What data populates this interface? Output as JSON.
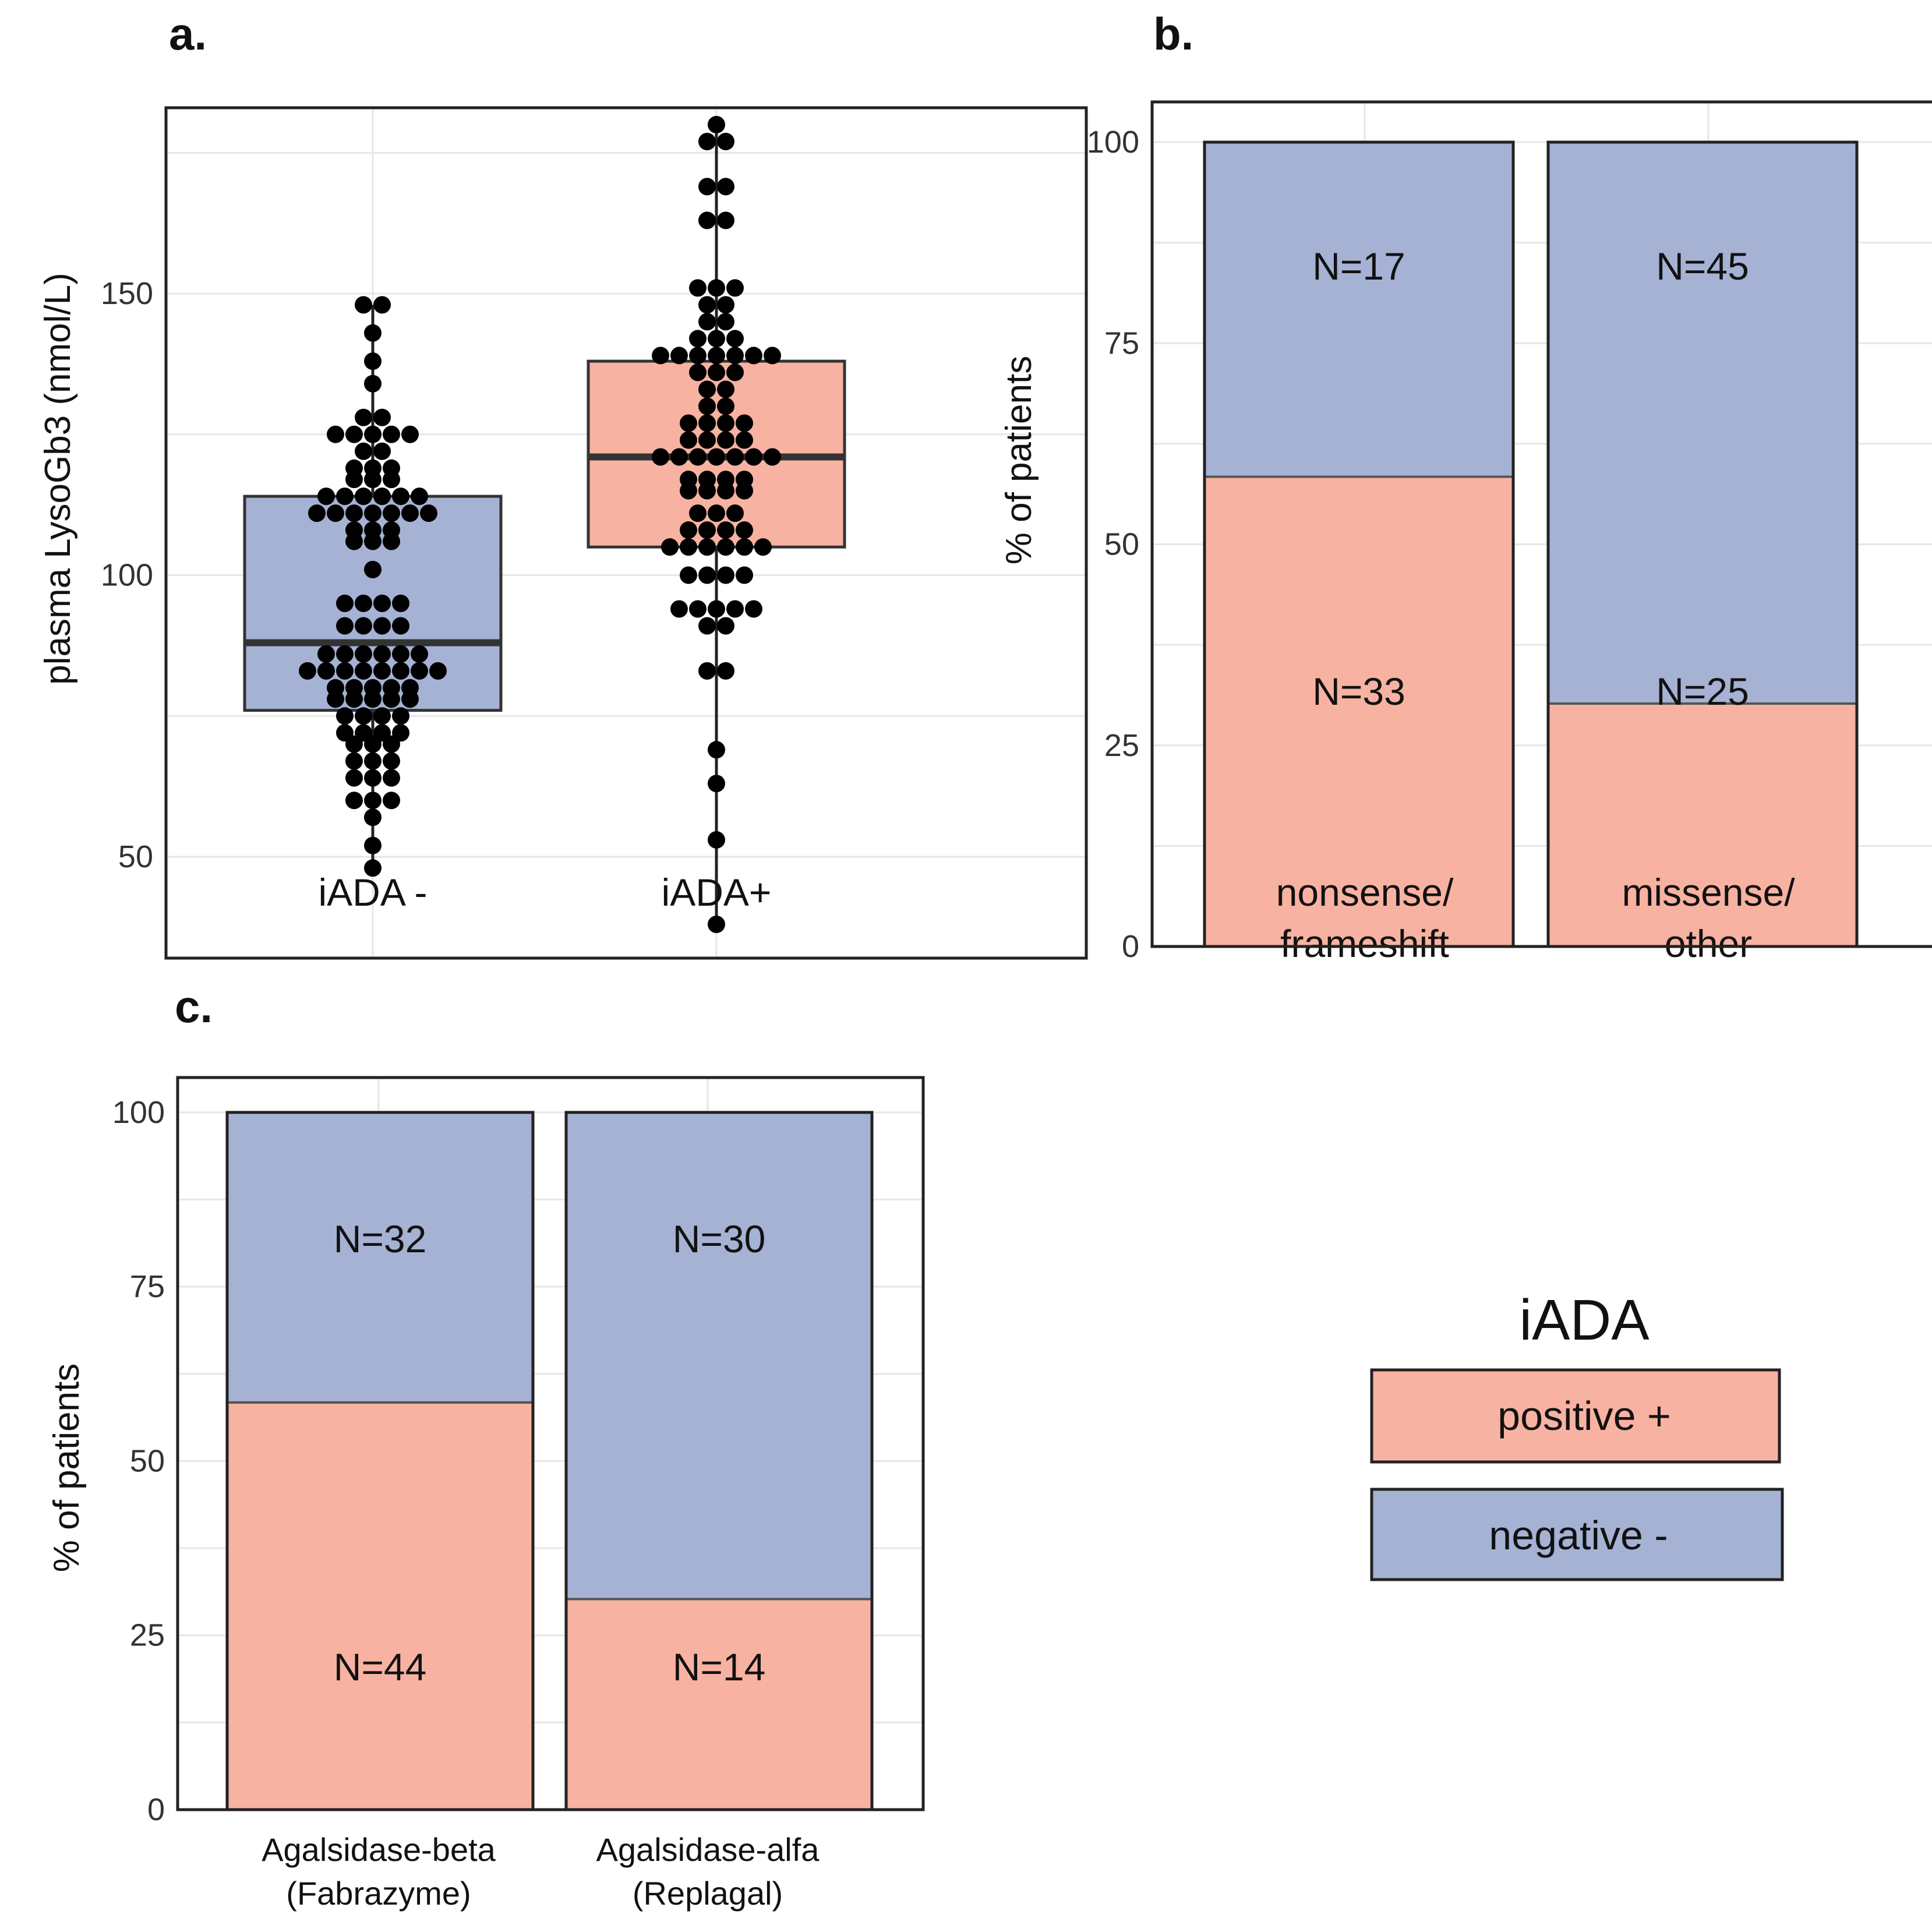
{
  "colors": {
    "positive": "#f8b2a1",
    "negative": "#a5b2d4",
    "frame": "#222222",
    "point": "#000000"
  },
  "legend": {
    "title": "iADA",
    "positive_label": "positive +",
    "negative_label": "negative -"
  },
  "chart_data": [
    {
      "panel": "a.",
      "type": "box",
      "ylabel": "plasma LysoGb3 (nmol/L)",
      "xlabel": "",
      "ylim": [
        32,
        183
      ],
      "yticks": [
        50,
        100,
        150
      ],
      "categories": [
        "iADA -",
        "iADA+"
      ],
      "boxes": [
        {
          "category": "iADA -",
          "q1": 76,
          "median": 88,
          "q3": 114,
          "whisker_low": 48,
          "whisker_high": 148,
          "fill": "negative",
          "points": [
            48,
            52,
            57,
            60,
            60,
            60,
            64,
            64,
            64,
            67,
            67,
            67,
            70,
            70,
            70,
            72,
            72,
            72,
            72,
            75,
            75,
            75,
            75,
            78,
            78,
            78,
            78,
            78,
            80,
            80,
            80,
            80,
            80,
            83,
            83,
            83,
            83,
            83,
            83,
            83,
            83,
            86,
            86,
            86,
            86,
            86,
            86,
            91,
            91,
            91,
            91,
            95,
            95,
            95,
            95,
            101,
            106,
            106,
            106,
            108,
            108,
            108,
            111,
            111,
            111,
            111,
            111,
            111,
            111,
            114,
            114,
            114,
            114,
            114,
            114,
            117,
            117,
            117,
            119,
            119,
            119,
            122,
            122,
            125,
            125,
            125,
            125,
            125,
            128,
            128,
            134,
            138,
            143,
            148,
            148
          ]
        },
        {
          "category": "iADA+",
          "q1": 105,
          "median": 121,
          "q3": 138,
          "whisker_low": 38,
          "whisker_high": 180,
          "fill": "positive",
          "points": [
            38,
            53,
            63,
            69,
            83,
            83,
            91,
            91,
            94,
            94,
            94,
            94,
            94,
            100,
            100,
            100,
            100,
            105,
            105,
            105,
            105,
            105,
            105,
            108,
            108,
            108,
            108,
            111,
            111,
            111,
            115,
            115,
            115,
            115,
            117,
            117,
            117,
            117,
            121,
            121,
            121,
            121,
            121,
            121,
            121,
            124,
            124,
            124,
            124,
            127,
            127,
            127,
            127,
            130,
            130,
            133,
            133,
            136,
            136,
            136,
            139,
            139,
            139,
            139,
            139,
            139,
            139,
            142,
            142,
            142,
            145,
            145,
            148,
            148,
            151,
            151,
            151,
            163,
            163,
            169,
            169,
            177,
            177,
            180
          ]
        }
      ]
    },
    {
      "panel": "b.",
      "type": "bar",
      "stacked": true,
      "ylabel": "% of patients",
      "ylim": [
        0,
        105
      ],
      "yticks": [
        0,
        25,
        50,
        75,
        100
      ],
      "categories": [
        "nonsense/\nframeshift",
        "missense/\nother"
      ],
      "series": [
        {
          "name": "positive +",
          "fill": "positive",
          "values": [
            58.4,
            30.2
          ],
          "labels": [
            "N=33",
            "N=25"
          ]
        },
        {
          "name": "negative -",
          "fill": "negative",
          "values": [
            41.6,
            69.8
          ],
          "labels": [
            "N=17",
            "N=45"
          ]
        }
      ]
    },
    {
      "panel": "c.",
      "type": "bar",
      "stacked": true,
      "ylabel": "% of patients",
      "ylim": [
        0,
        105
      ],
      "yticks": [
        0,
        25,
        50,
        75,
        100
      ],
      "categories": [
        "Agalsidase-beta\n(Fabrazyme)",
        "Agalsidase-alfa\n(Replagal)"
      ],
      "series": [
        {
          "name": "positive +",
          "fill": "positive",
          "values": [
            58.4,
            30.2
          ],
          "labels": [
            "N=44",
            "N=14"
          ]
        },
        {
          "name": "negative -",
          "fill": "negative",
          "values": [
            41.6,
            69.8
          ],
          "labels": [
            "N=32",
            "N=30"
          ]
        }
      ]
    }
  ]
}
